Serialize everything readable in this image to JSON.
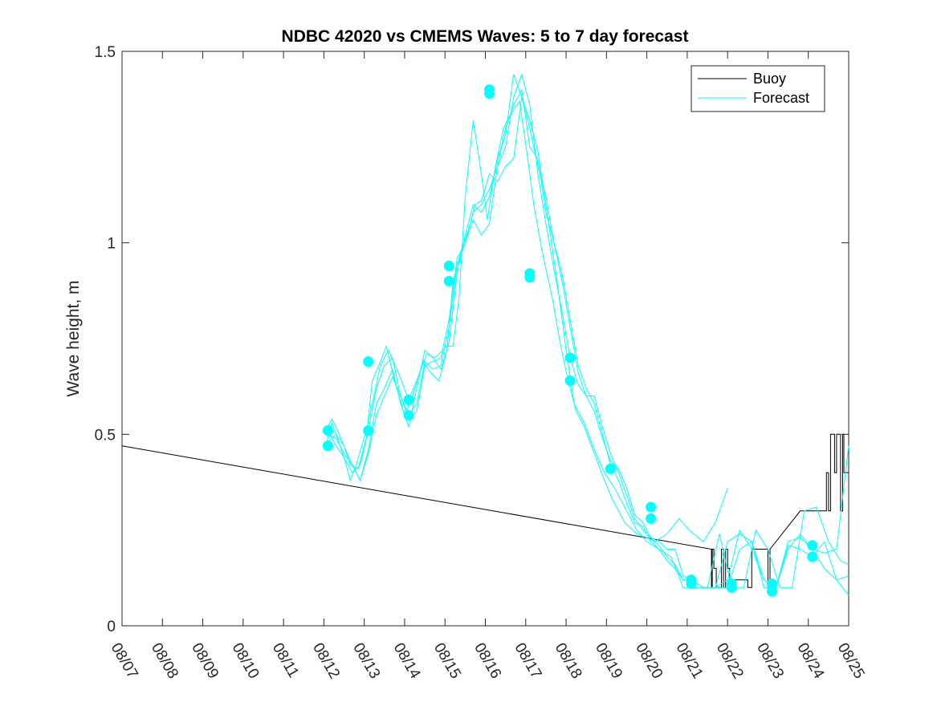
{
  "chart_data": {
    "type": "line",
    "title": "NDBC 42020 vs CMEMS Waves: 5 to 7 day forecast",
    "xlabel": "",
    "ylabel": "Wave height, m",
    "xlim": [
      0,
      18
    ],
    "ylim": [
      0,
      1.5
    ],
    "x_tick_labels": [
      "08/07",
      "08/08",
      "08/09",
      "08/10",
      "08/11",
      "08/12",
      "08/13",
      "08/14",
      "08/15",
      "08/16",
      "08/17",
      "08/18",
      "08/19",
      "08/20",
      "08/21",
      "08/22",
      "08/23",
      "08/24",
      "08/25"
    ],
    "y_ticks": [
      0,
      0.5,
      1,
      1.5
    ],
    "y_tick_labels": [
      "0",
      "0.5",
      "1",
      "1.5"
    ],
    "legend": {
      "position": "top-right",
      "entries": [
        "Buoy",
        "Forecast"
      ]
    },
    "colors": {
      "buoy": "#000000",
      "forecast": "#00ffff"
    },
    "series": [
      {
        "name": "Buoy",
        "x": [
          0,
          14.6,
          14.6,
          14.62,
          14.62,
          14.66,
          14.66,
          14.72,
          14.72,
          14.85,
          14.85,
          14.9,
          14.9,
          14.95,
          14.95,
          15.0,
          15.0,
          15.05,
          15.05,
          15.1,
          15.1,
          15.5,
          15.5,
          15.6,
          15.6,
          16.0,
          16.0,
          16.05,
          16.05,
          16.8,
          17.3,
          17.45,
          17.45,
          17.5,
          17.5,
          17.55,
          17.55,
          17.65,
          17.65,
          17.7,
          17.7,
          17.8,
          17.8,
          17.85,
          17.85,
          17.88,
          17.88,
          18.0
        ],
        "y": [
          0.47,
          0.2,
          0.1,
          0.1,
          0.2,
          0.2,
          0.15,
          0.15,
          0.1,
          0.1,
          0.2,
          0.2,
          0.1,
          0.1,
          0.2,
          0.2,
          0.15,
          0.15,
          0.1,
          0.1,
          0.12,
          0.12,
          0.1,
          0.1,
          0.2,
          0.2,
          0.1,
          0.1,
          0.2,
          0.3,
          0.3,
          0.3,
          0.4,
          0.4,
          0.3,
          0.3,
          0.5,
          0.5,
          0.4,
          0.4,
          0.5,
          0.5,
          0.3,
          0.3,
          0.5,
          0.5,
          0.4,
          0.4
        ]
      },
      {
        "name": "Forecast",
        "x": [
          5.05,
          5.2,
          5.3,
          5.5,
          5.65,
          5.8,
          6.05,
          6.2,
          6.4,
          6.6,
          6.85,
          7.1,
          7.3,
          7.55,
          7.75,
          8.05,
          8.2,
          8.35,
          8.5,
          8.7,
          8.9,
          9.05,
          9.25,
          9.45,
          9.65,
          9.85,
          10.05,
          10.2,
          10.4,
          10.65,
          10.85,
          11.05,
          11.25,
          11.45,
          11.7,
          11.95,
          12.15,
          12.45,
          12.75,
          13.0,
          13.2,
          13.5,
          13.8,
          14.05,
          14.4,
          14.7,
          15.0
        ],
        "y": [
          0.47,
          0.53,
          0.5,
          0.44,
          0.38,
          0.42,
          0.51,
          0.58,
          0.68,
          0.72,
          0.66,
          0.59,
          0.64,
          0.71,
          0.7,
          0.73,
          0.73,
          0.86,
          1.12,
          1.32,
          1.18,
          1.06,
          1.2,
          1.3,
          1.34,
          1.37,
          1.22,
          1.1,
          0.98,
          0.86,
          0.74,
          0.64,
          0.56,
          0.52,
          0.45,
          0.38,
          0.33,
          0.27,
          0.24,
          0.23,
          0.22,
          0.24,
          0.28,
          0.25,
          0.22,
          0.27,
          0.36
        ]
      },
      {
        "name": "Forecast",
        "x": [
          5.05,
          5.2,
          5.3,
          5.5,
          5.65,
          5.85,
          6.05,
          6.2,
          6.4,
          6.55,
          6.75,
          7.0,
          7.2,
          7.45,
          7.65,
          7.85,
          8.05,
          8.2,
          8.4,
          8.6,
          8.75,
          8.9,
          9.1,
          9.3,
          9.5,
          9.7,
          9.9,
          10.1,
          10.3,
          10.5,
          10.75,
          11.0,
          11.2,
          11.45,
          11.7,
          11.95,
          12.2,
          12.5,
          12.75,
          13.0,
          13.3,
          13.6,
          13.9,
          14.2,
          14.5,
          14.8,
          15.1,
          15.4,
          15.7,
          16.0,
          16.3,
          16.6,
          16.9,
          17.2,
          17.5,
          17.8,
          18.0
        ],
        "y": [
          0.51,
          0.54,
          0.52,
          0.47,
          0.42,
          0.41,
          0.49,
          0.64,
          0.69,
          0.73,
          0.64,
          0.55,
          0.6,
          0.69,
          0.66,
          0.64,
          0.72,
          0.9,
          0.98,
          1.04,
          1.1,
          1.11,
          1.18,
          1.16,
          1.2,
          1.22,
          1.38,
          1.32,
          1.24,
          1.1,
          0.92,
          0.72,
          0.58,
          0.53,
          0.46,
          0.4,
          0.36,
          0.3,
          0.25,
          0.22,
          0.2,
          0.18,
          0.1,
          0.1,
          0.1,
          0.24,
          0.1,
          0.1,
          0.25,
          0.2,
          0.1,
          0.1,
          0.3,
          0.31,
          0.22,
          0.17,
          0.16
        ]
      },
      {
        "name": "Forecast",
        "x": [
          5.1,
          5.3,
          5.5,
          5.7,
          5.9,
          6.1,
          6.3,
          6.5,
          6.7,
          6.9,
          7.1,
          7.3,
          7.5,
          7.7,
          7.9,
          8.1,
          8.3,
          8.5,
          8.7,
          8.9,
          9.1,
          9.3,
          9.5,
          9.7,
          9.9,
          10.1,
          10.3,
          10.5,
          10.7,
          10.9,
          11.1,
          11.3,
          11.5,
          11.7,
          11.9,
          12.1,
          12.3,
          12.5,
          12.7,
          12.9,
          13.1,
          13.3,
          13.5,
          13.7,
          13.9,
          14.1,
          14.4,
          14.7,
          15.0,
          15.3,
          15.6,
          15.9,
          16.2,
          16.5,
          16.8,
          17.1,
          17.4,
          17.7,
          18.0
        ],
        "y": [
          0.51,
          0.47,
          0.44,
          0.4,
          0.42,
          0.51,
          0.62,
          0.68,
          0.7,
          0.6,
          0.55,
          0.58,
          0.69,
          0.67,
          0.68,
          0.78,
          0.94,
          1.0,
          1.06,
          1.02,
          1.05,
          1.2,
          1.25,
          1.38,
          1.44,
          1.36,
          1.18,
          1.05,
          0.93,
          0.82,
          0.7,
          0.63,
          0.6,
          0.56,
          0.49,
          0.43,
          0.41,
          0.36,
          0.29,
          0.27,
          0.23,
          0.21,
          0.18,
          0.16,
          0.12,
          0.12,
          0.1,
          0.1,
          0.12,
          0.25,
          0.2,
          0.12,
          0.1,
          0.22,
          0.23,
          0.2,
          0.15,
          0.12,
          0.13
        ]
      },
      {
        "name": "Forecast",
        "x": [
          5.1,
          5.3,
          5.5,
          5.7,
          5.9,
          6.1,
          6.3,
          6.5,
          6.7,
          6.9,
          7.1,
          7.3,
          7.5,
          7.7,
          7.9,
          8.1,
          8.3,
          8.5,
          8.7,
          8.9,
          9.1,
          9.3,
          9.5,
          9.7,
          9.9,
          10.1,
          10.3,
          10.5,
          10.7,
          10.9,
          11.1,
          11.3,
          11.5,
          11.7,
          11.9,
          12.1,
          12.3,
          12.5,
          12.7,
          12.9,
          13.1,
          13.3,
          13.5,
          13.7,
          13.9,
          14.1,
          14.4,
          14.7,
          15.0,
          15.3,
          15.6,
          15.9,
          16.2,
          16.5,
          16.8,
          17.1,
          17.4,
          17.7,
          18.0
        ],
        "y": [
          0.5,
          0.49,
          0.45,
          0.42,
          0.38,
          0.46,
          0.58,
          0.62,
          0.67,
          0.58,
          0.52,
          0.62,
          0.72,
          0.7,
          0.67,
          0.74,
          0.92,
          1.02,
          1.1,
          1.08,
          1.12,
          1.22,
          1.28,
          1.44,
          1.38,
          1.3,
          1.2,
          1.12,
          1.0,
          0.9,
          0.78,
          0.66,
          0.6,
          0.6,
          0.52,
          0.45,
          0.4,
          0.34,
          0.28,
          0.25,
          0.23,
          0.22,
          0.2,
          0.2,
          0.13,
          0.12,
          0.1,
          0.1,
          0.22,
          0.24,
          0.22,
          0.1,
          0.1,
          0.21,
          0.2,
          0.18,
          0.22,
          0.12,
          0.08
        ]
      },
      {
        "name": "Forecast",
        "x": [
          5.1,
          5.3,
          5.5,
          5.7,
          5.9,
          6.1,
          6.3,
          6.5,
          6.7,
          6.9,
          7.1,
          7.3,
          7.5,
          7.7,
          7.9,
          8.1,
          8.3,
          8.5,
          8.7,
          8.9,
          9.1,
          9.3,
          9.5,
          9.7,
          9.9,
          10.1,
          10.3,
          10.5,
          10.7,
          10.9,
          11.1,
          11.3,
          11.5,
          11.7,
          11.9,
          12.1,
          12.3,
          12.5,
          12.7,
          12.9,
          13.1,
          13.3,
          13.5,
          13.7,
          13.9,
          14.1,
          14.4,
          14.7,
          15.0,
          15.3,
          15.6,
          15.9,
          16.2,
          16.5,
          16.8,
          17.1,
          17.4,
          17.7,
          18.0
        ],
        "y": [
          0.48,
          0.5,
          0.47,
          0.42,
          0.38,
          0.45,
          0.55,
          0.6,
          0.65,
          0.6,
          0.54,
          0.56,
          0.68,
          0.69,
          0.7,
          0.8,
          0.96,
          1.0,
          1.08,
          1.1,
          1.14,
          1.2,
          1.3,
          1.36,
          1.4,
          1.25,
          1.22,
          1.08,
          1.0,
          0.92,
          0.8,
          0.68,
          0.62,
          0.58,
          0.5,
          0.42,
          0.38,
          0.32,
          0.27,
          0.26,
          0.22,
          0.2,
          0.17,
          0.15,
          0.12,
          0.12,
          0.1,
          0.1,
          0.1,
          0.2,
          0.22,
          0.12,
          0.1,
          0.2,
          0.24,
          0.2,
          0.19,
          0.2,
          0.47
        ]
      }
    ],
    "markers": {
      "name": "Forecast start points",
      "x": [
        5.1,
        5.1,
        6.1,
        6.1,
        7.1,
        7.1,
        8.1,
        8.1,
        9.1,
        9.1,
        10.1,
        10.1,
        11.1,
        11.1,
        12.1,
        12.1,
        13.1,
        13.1,
        14.1,
        14.1,
        15.1,
        15.1,
        16.1,
        16.1,
        17.1,
        17.1
      ],
      "y": [
        0.51,
        0.47,
        0.69,
        0.51,
        0.59,
        0.55,
        0.94,
        0.9,
        1.4,
        1.39,
        0.92,
        0.91,
        0.7,
        0.64,
        0.41,
        0.41,
        0.31,
        0.28,
        0.12,
        0.11,
        0.11,
        0.1,
        0.11,
        0.09,
        0.21,
        0.18
      ]
    }
  }
}
